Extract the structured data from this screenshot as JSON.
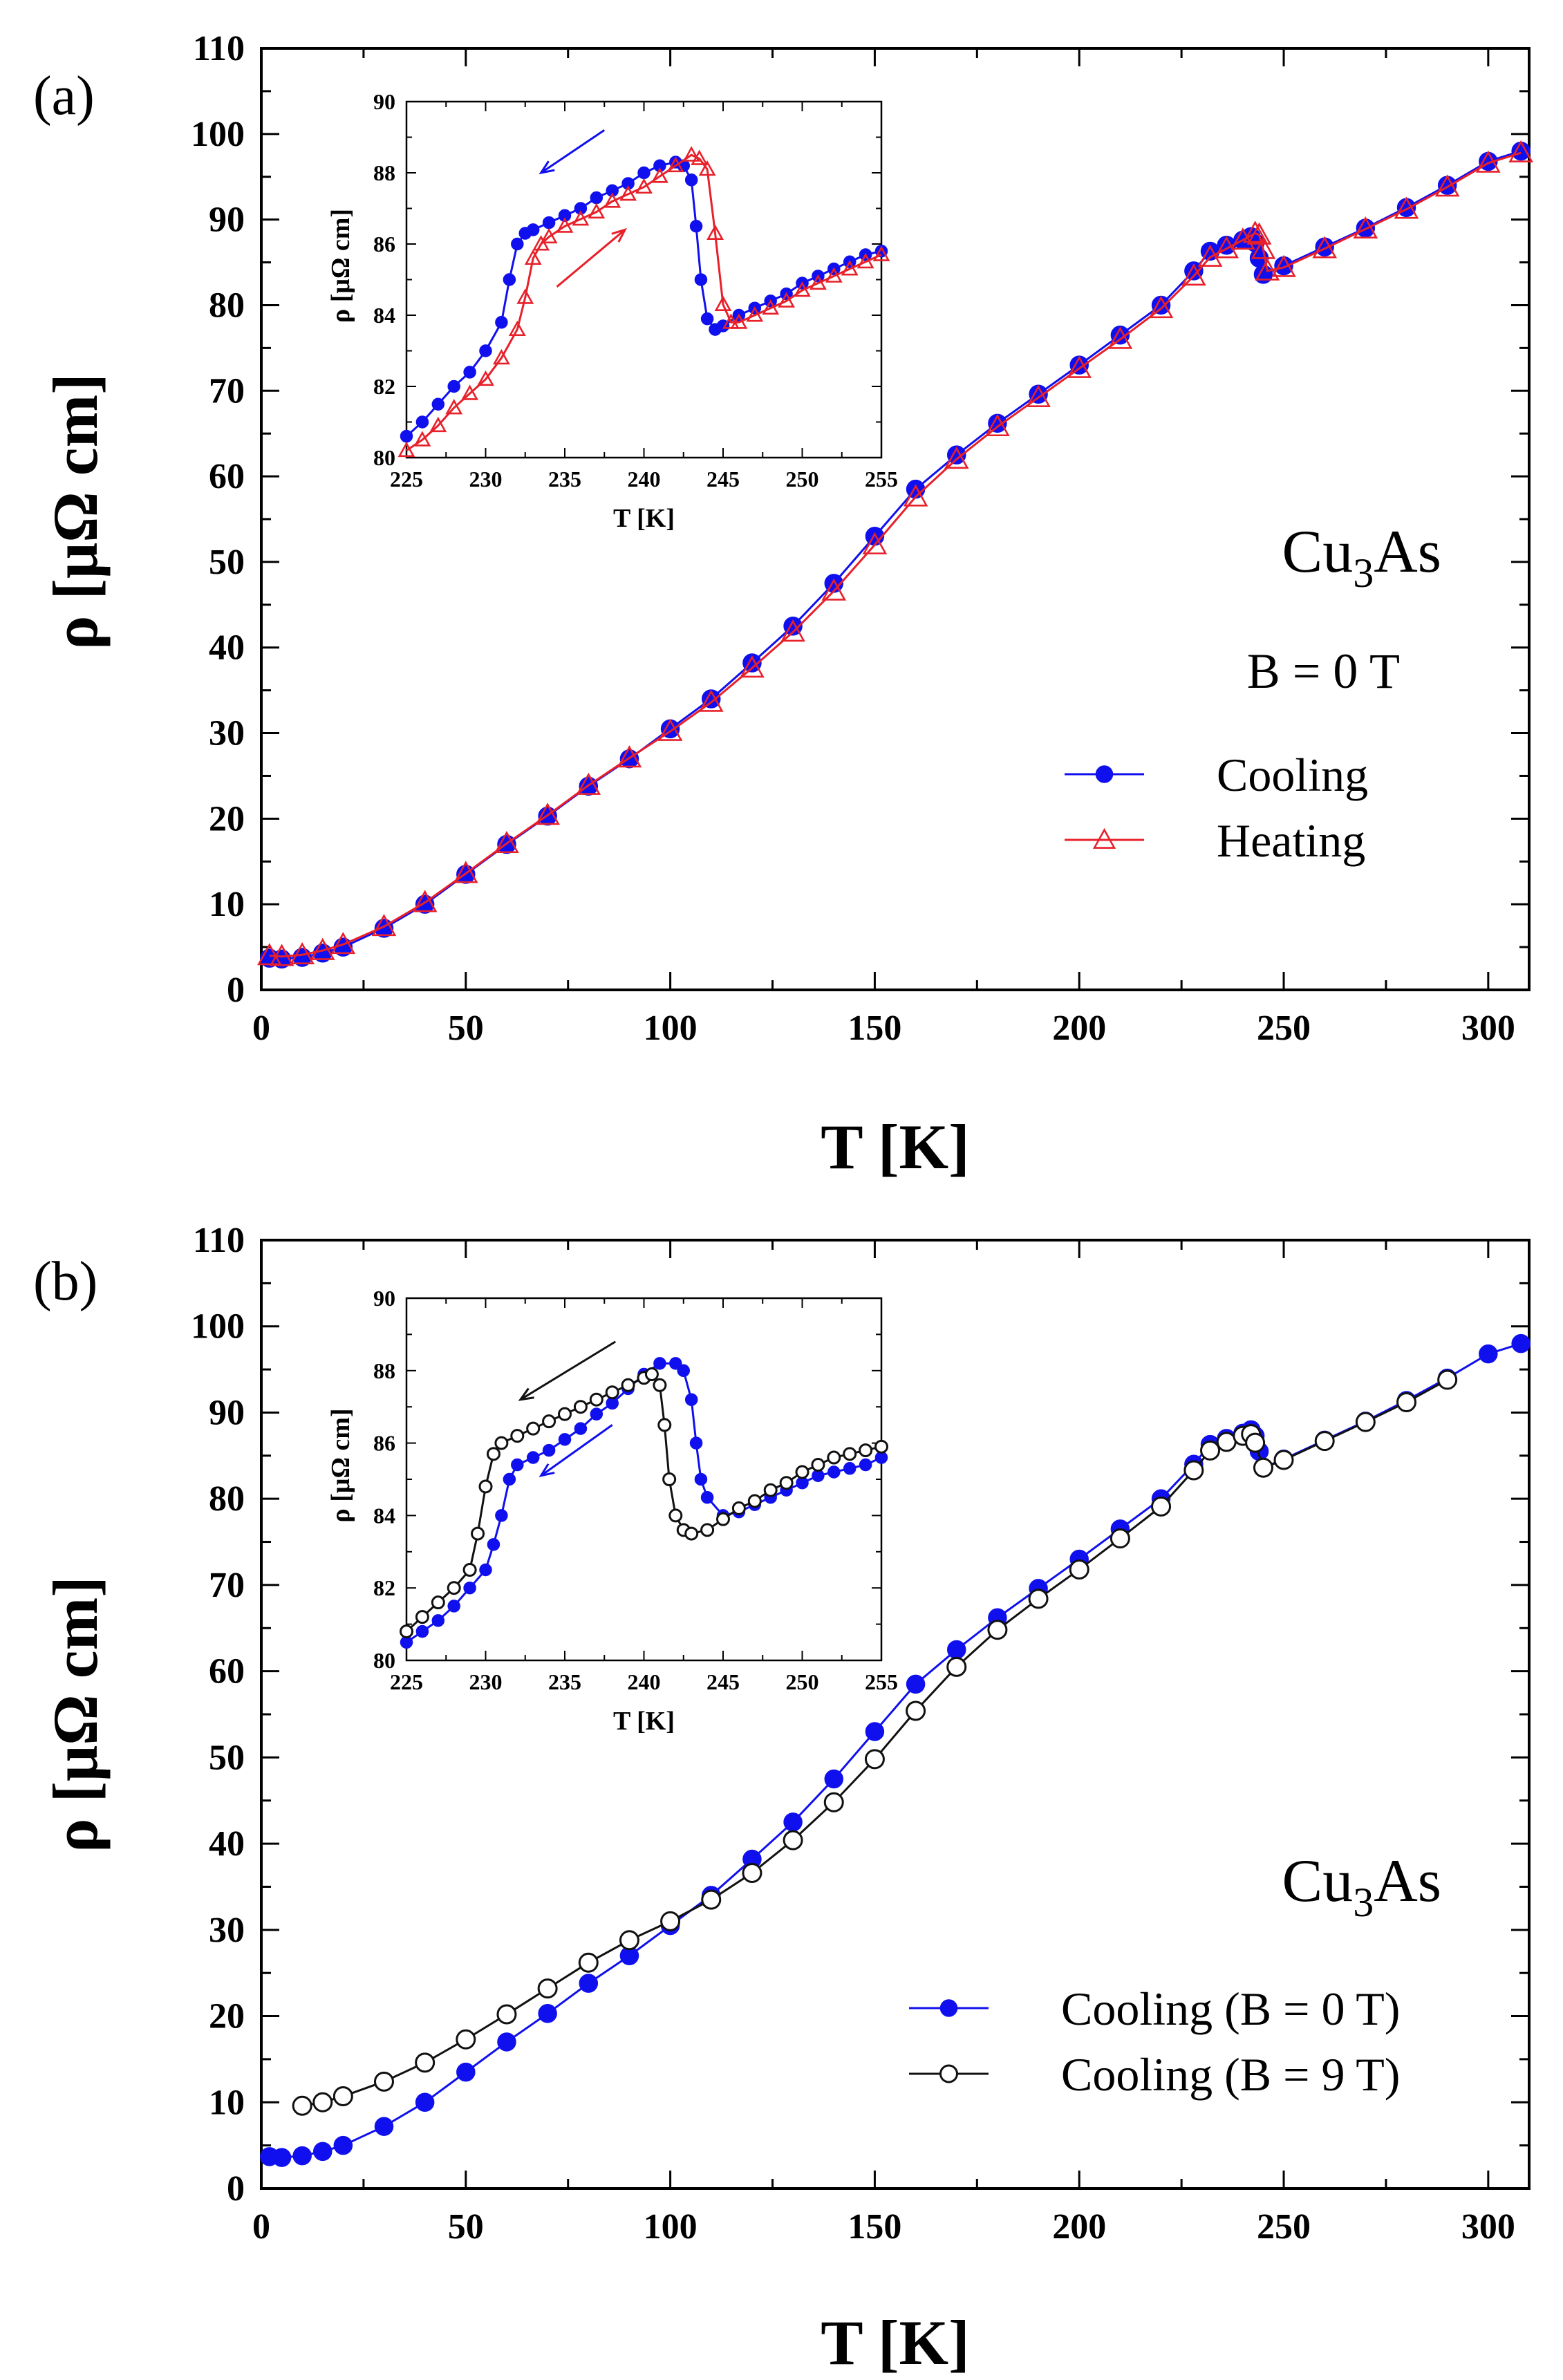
{
  "chart_data": [
    {
      "panel": "(a)",
      "type": "scatter",
      "xlabel": "T [K]",
      "ylabel": "ρ [μΩ cm]",
      "xlim": [
        0,
        310
      ],
      "ylim": [
        0,
        110
      ],
      "xticks": [
        0,
        50,
        100,
        150,
        200,
        250,
        300
      ],
      "yticks": [
        0,
        10,
        20,
        30,
        40,
        50,
        60,
        70,
        80,
        90,
        100,
        110
      ],
      "annotations": {
        "compound_base": "Cu",
        "compound_sub": "3",
        "compound_tail": "As",
        "field": "B = 0 T"
      },
      "legend": [
        "Cooling",
        "Heating"
      ],
      "series": [
        {
          "name": "Cooling",
          "color": "#1010ee",
          "marker": "filled-circle",
          "x": [
            2,
            5,
            10,
            15,
            20,
            30,
            40,
            50,
            60,
            70,
            80,
            90,
            100,
            110,
            120,
            130,
            140,
            150,
            160,
            170,
            180,
            190,
            200,
            210,
            220,
            228,
            232,
            236,
            240,
            242,
            243,
            244,
            245,
            250,
            260,
            270,
            280,
            290,
            300,
            308
          ],
          "y": [
            3.7,
            3.6,
            3.8,
            4.3,
            5.0,
            7.2,
            10.0,
            13.5,
            17.0,
            20.3,
            23.8,
            27.0,
            30.5,
            34.0,
            38.2,
            42.5,
            47.5,
            53.0,
            58.5,
            62.5,
            66.2,
            69.6,
            73.0,
            76.5,
            80.0,
            84.0,
            86.3,
            87.0,
            87.6,
            88.0,
            87.3,
            85.5,
            83.6,
            84.6,
            86.8,
            89.0,
            91.4,
            94.0,
            96.8,
            98.0
          ]
        },
        {
          "name": "Heating",
          "color": "#e8202a",
          "marker": "open-triangle",
          "x": [
            2,
            5,
            10,
            15,
            20,
            30,
            40,
            50,
            60,
            70,
            80,
            90,
            100,
            110,
            120,
            130,
            140,
            150,
            160,
            170,
            180,
            190,
            200,
            210,
            220,
            228,
            232,
            236,
            240,
            243,
            244,
            245,
            246,
            250,
            260,
            270,
            280,
            290,
            300,
            308
          ],
          "y": [
            4.0,
            3.9,
            4.1,
            4.6,
            5.3,
            7.4,
            10.2,
            13.6,
            17.1,
            20.4,
            23.9,
            27.1,
            30.2,
            33.6,
            37.6,
            41.8,
            46.6,
            52.0,
            57.6,
            62.0,
            65.8,
            69.2,
            72.6,
            76.0,
            79.6,
            83.4,
            85.6,
            86.6,
            87.6,
            88.4,
            88.2,
            86.5,
            84.0,
            84.4,
            86.6,
            88.9,
            91.2,
            93.8,
            96.6,
            97.8
          ]
        }
      ],
      "inset": {
        "xlabel": "T [K]",
        "ylabel": "ρ [μΩ cm]",
        "xlim": [
          225,
          255
        ],
        "ylim": [
          80,
          90
        ],
        "xticks": [
          225,
          230,
          235,
          240,
          245,
          250,
          255
        ],
        "yticks": [
          80,
          82,
          84,
          86,
          88,
          90
        ],
        "series": [
          {
            "name": "Cooling",
            "color": "#1010ee",
            "marker": "filled-circle",
            "x": [
              225,
              226,
              227,
              228,
              229,
              230,
              231,
              231.5,
              232,
              232.5,
              233,
              234,
              235,
              236,
              237,
              238,
              239,
              240,
              241,
              242,
              242.5,
              243,
              243.3,
              243.6,
              244,
              244.5,
              245,
              246,
              247,
              248,
              249,
              250,
              251,
              252,
              253,
              254,
              255
            ],
            "y": [
              80.6,
              81.0,
              81.5,
              82.0,
              82.4,
              83.0,
              83.8,
              85.0,
              86.0,
              86.3,
              86.4,
              86.6,
              86.8,
              87.0,
              87.3,
              87.5,
              87.7,
              88.0,
              88.2,
              88.3,
              88.2,
              87.8,
              86.5,
              85.0,
              83.9,
              83.6,
              83.7,
              84.0,
              84.2,
              84.4,
              84.6,
              84.9,
              85.1,
              85.3,
              85.5,
              85.7,
              85.8
            ]
          },
          {
            "name": "Heating",
            "color": "#e8202a",
            "marker": "open-triangle",
            "x": [
              225,
              226,
              227,
              228,
              229,
              230,
              231,
              232,
              232.5,
              233,
              233.5,
              234,
              235,
              236,
              237,
              238,
              239,
              240,
              241,
              242,
              243,
              243.5,
              244,
              244.5,
              245,
              245.5,
              246,
              247,
              248,
              249,
              250,
              251,
              252,
              253,
              254,
              255
            ],
            "y": [
              80.2,
              80.5,
              80.9,
              81.4,
              81.8,
              82.2,
              82.8,
              83.6,
              84.5,
              85.6,
              86.0,
              86.2,
              86.5,
              86.7,
              86.9,
              87.2,
              87.4,
              87.6,
              87.9,
              88.2,
              88.5,
              88.4,
              88.1,
              86.3,
              84.3,
              83.8,
              83.8,
              84.0,
              84.2,
              84.4,
              84.7,
              84.9,
              85.1,
              85.3,
              85.5,
              85.7
            ]
          }
        ]
      }
    },
    {
      "panel": "(b)",
      "type": "scatter",
      "xlabel": "T [K]",
      "ylabel": "ρ [μΩ cm]",
      "xlim": [
        0,
        310
      ],
      "ylim": [
        0,
        110
      ],
      "xticks": [
        0,
        50,
        100,
        150,
        200,
        250,
        300
      ],
      "yticks": [
        0,
        10,
        20,
        30,
        40,
        50,
        60,
        70,
        80,
        90,
        100,
        110
      ],
      "annotations": {
        "compound_base": "Cu",
        "compound_sub": "3",
        "compound_tail": "As"
      },
      "legend": [
        "Cooling (B = 0 T)",
        "Cooling (B = 9 T)"
      ],
      "series": [
        {
          "name": "Cooling (B = 0 T)",
          "color": "#1010ee",
          "marker": "filled-circle",
          "x": [
            2,
            5,
            10,
            15,
            20,
            30,
            40,
            50,
            60,
            70,
            80,
            90,
            100,
            110,
            120,
            130,
            140,
            150,
            160,
            170,
            180,
            190,
            200,
            210,
            220,
            228,
            232,
            236,
            240,
            242,
            243,
            244,
            245,
            250,
            260,
            270,
            280,
            290,
            300,
            308
          ],
          "y": [
            3.7,
            3.6,
            3.8,
            4.3,
            5.0,
            7.2,
            10.0,
            13.5,
            17.0,
            20.3,
            23.8,
            27.0,
            30.5,
            34.0,
            38.2,
            42.5,
            47.5,
            53.0,
            58.5,
            62.5,
            66.2,
            69.6,
            73.0,
            76.5,
            80.0,
            84.0,
            86.3,
            87.0,
            87.6,
            88.0,
            87.3,
            85.5,
            83.6,
            84.6,
            86.8,
            89.0,
            91.4,
            94.0,
            96.8,
            98.0
          ]
        },
        {
          "name": "Cooling (B = 9 T)",
          "color": "#111111",
          "marker": "open-circle",
          "x": [
            10,
            15,
            20,
            30,
            40,
            50,
            60,
            70,
            80,
            90,
            100,
            110,
            120,
            130,
            140,
            150,
            160,
            170,
            180,
            190,
            200,
            210,
            220,
            228,
            232,
            236,
            240,
            242,
            243,
            245,
            250,
            260,
            270,
            280,
            290
          ],
          "y": [
            9.6,
            10.0,
            10.7,
            12.4,
            14.6,
            17.3,
            20.2,
            23.2,
            26.2,
            28.8,
            31.0,
            33.5,
            36.6,
            40.4,
            44.8,
            49.8,
            55.4,
            60.5,
            64.8,
            68.4,
            71.8,
            75.4,
            79.1,
            83.3,
            85.6,
            86.6,
            87.3,
            87.5,
            86.5,
            83.6,
            84.5,
            86.7,
            88.9,
            91.2,
            93.8
          ]
        }
      ],
      "inset": {
        "xlabel": "T [K]",
        "ylabel": "ρ [μΩ cm]",
        "xlim": [
          225,
          255
        ],
        "ylim": [
          80,
          90
        ],
        "xticks": [
          225,
          230,
          235,
          240,
          245,
          250,
          255
        ],
        "yticks": [
          80,
          82,
          84,
          86,
          88,
          90
        ],
        "series": [
          {
            "name": "Cooling (B = 0 T)",
            "color": "#1010ee",
            "marker": "filled-circle",
            "x": [
              225,
              226,
              227,
              228,
              229,
              230,
              230.5,
              231,
              231.5,
              232,
              233,
              234,
              235,
              236,
              237,
              238,
              239,
              240,
              241,
              242,
              242.5,
              243,
              243.3,
              243.6,
              244,
              245,
              246,
              247,
              248,
              249,
              250,
              251,
              252,
              253,
              254,
              255
            ],
            "y": [
              80.5,
              80.8,
              81.1,
              81.5,
              82.0,
              82.5,
              83.2,
              84.0,
              85.0,
              85.4,
              85.6,
              85.8,
              86.1,
              86.4,
              86.8,
              87.1,
              87.5,
              87.9,
              88.2,
              88.2,
              88.0,
              87.2,
              86.0,
              85.0,
              84.5,
              84.0,
              84.1,
              84.3,
              84.5,
              84.7,
              84.9,
              85.1,
              85.2,
              85.3,
              85.4,
              85.6
            ]
          },
          {
            "name": "Cooling (B = 9 T)",
            "color": "#111111",
            "marker": "open-circle",
            "x": [
              225,
              226,
              227,
              228,
              229,
              229.5,
              230,
              230.5,
              231,
              232,
              233,
              234,
              235,
              236,
              237,
              238,
              239,
              240,
              240.5,
              241,
              241.3,
              241.6,
              242,
              242.5,
              243,
              244,
              245,
              246,
              247,
              248,
              249,
              250,
              251,
              252,
              253,
              254,
              255
            ],
            "y": [
              80.8,
              81.2,
              81.6,
              82.0,
              82.5,
              83.5,
              84.8,
              85.7,
              86.0,
              86.2,
              86.4,
              86.6,
              86.8,
              87.0,
              87.2,
              87.4,
              87.6,
              87.8,
              87.9,
              87.6,
              86.5,
              85.0,
              84.0,
              83.6,
              83.5,
              83.6,
              83.9,
              84.2,
              84.4,
              84.7,
              84.9,
              85.2,
              85.4,
              85.6,
              85.7,
              85.8,
              85.9
            ]
          }
        ]
      }
    }
  ]
}
